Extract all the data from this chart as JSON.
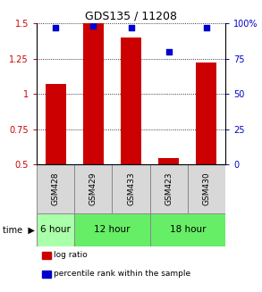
{
  "title": "GDS135 / 11208",
  "samples": [
    "GSM428",
    "GSM429",
    "GSM433",
    "GSM423",
    "GSM430"
  ],
  "log_ratio": [
    1.07,
    1.5,
    1.4,
    0.55,
    1.22
  ],
  "percentile_rank": [
    97,
    98,
    97,
    80,
    97
  ],
  "ylim_left": [
    0.5,
    1.5
  ],
  "ylim_right": [
    0,
    100
  ],
  "yticks_left": [
    0.5,
    0.75,
    1.0,
    1.25,
    1.5
  ],
  "yticks_right": [
    0,
    25,
    50,
    75,
    100
  ],
  "ytick_labels_left": [
    "0.5",
    "0.75",
    "1",
    "1.25",
    "1.5"
  ],
  "ytick_labels_right": [
    "0",
    "25",
    "50",
    "75",
    "100%"
  ],
  "bar_color": "#cc0000",
  "dot_color": "#0000cc",
  "time_groups": [
    {
      "label": "6 hour",
      "start": 0,
      "end": 1
    },
    {
      "label": "12 hour",
      "start": 1,
      "end": 3
    },
    {
      "label": "18 hour",
      "start": 3,
      "end": 5
    }
  ],
  "time_group_colors": [
    "#aaffaa",
    "#66ee66",
    "#66ee66"
  ],
  "legend_items": [
    {
      "color": "#cc0000",
      "label": "log ratio"
    },
    {
      "color": "#0000cc",
      "label": "percentile rank within the sample"
    }
  ],
  "bar_width": 0.55,
  "sample_box_color": "#d8d8d8",
  "sample_box_border": "#888888",
  "figsize": [
    2.93,
    3.27
  ],
  "dpi": 100
}
